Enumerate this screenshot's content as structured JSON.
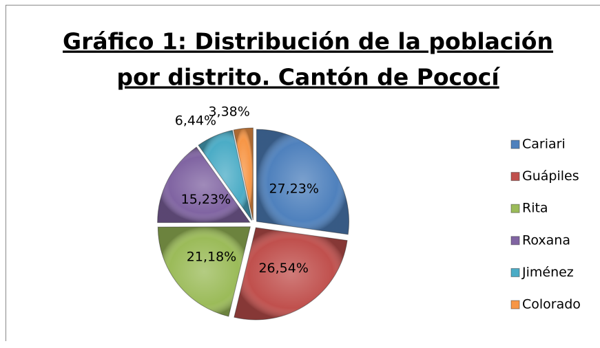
{
  "chart_data": {
    "type": "pie",
    "title_lines": [
      "Gráfico 1: Distribución de la población",
      "por distrito. Cantón de Pococí"
    ],
    "categories": [
      "Cariari",
      "Guápiles",
      "Rita",
      "Roxana",
      "Jiménez",
      "Colorado"
    ],
    "values": [
      27.23,
      26.54,
      21.18,
      15.23,
      6.44,
      3.38
    ],
    "value_labels": [
      "27,23%",
      "26,54%",
      "21,18%",
      "15,23%",
      "6,44%",
      "3,38%"
    ],
    "colors": [
      "#4f81bd",
      "#c0504d",
      "#9bbb59",
      "#8064a2",
      "#4bacc6",
      "#f79646"
    ],
    "legend": "right"
  }
}
